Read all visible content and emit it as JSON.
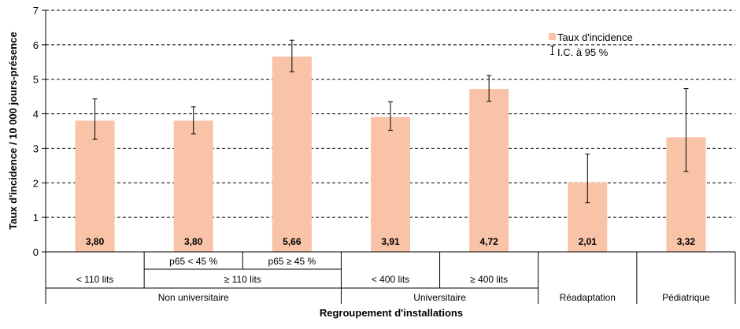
{
  "chart_data": {
    "type": "bar",
    "title": "",
    "ylabel": "Taux d'incidence / 10 000 jours-présence",
    "xlabel": "Regroupement d'installations",
    "ylim": [
      0,
      7
    ],
    "yticks": [
      "0",
      "1",
      "2",
      "3",
      "4",
      "5",
      "6",
      "7"
    ],
    "grid": "horizontal-dashed",
    "legend_position": "top-right",
    "colors": {
      "bar": "#F8C3A7",
      "error": "#000000",
      "grid": "#000000"
    },
    "series": [
      {
        "name": "Taux d'incidence",
        "values": [
          3.8,
          3.8,
          5.66,
          3.91,
          4.72,
          2.01,
          3.32
        ],
        "value_labels": [
          "3,80",
          "3,80",
          "5,66",
          "3,91",
          "4,72",
          "2,01",
          "3,32"
        ]
      }
    ],
    "error_bars": {
      "name": "I.C. à 95 %",
      "low": [
        3.26,
        3.42,
        5.22,
        3.52,
        4.36,
        1.42,
        2.33
      ],
      "high": [
        4.43,
        4.2,
        6.13,
        4.35,
        5.11,
        2.83,
        4.73
      ]
    },
    "categories": [
      "< 110 lits / Non universitaire",
      "p65 < 45 % / ≥ 110 lits / Non universitaire",
      "p65 ≥ 45 % / ≥ 110 lits / Non universitaire",
      "< 400 lits / Universitaire",
      "≥ 400 lits / Universitaire",
      "Réadaptation",
      "Pédiatrique"
    ],
    "category_levels": {
      "level1": [
        {
          "label": "",
          "start": 0,
          "end": 1
        },
        {
          "label": "p65 < 45 %",
          "start": 1,
          "end": 2
        },
        {
          "label": "p65 ≥ 45 %",
          "start": 2,
          "end": 3
        },
        {
          "label": "",
          "start": 3,
          "end": 4
        },
        {
          "label": "",
          "start": 4,
          "end": 5
        },
        {
          "label": "",
          "start": 5,
          "end": 6
        },
        {
          "label": "",
          "start": 6,
          "end": 7
        }
      ],
      "level2": [
        {
          "label": "< 110 lits",
          "start": 0,
          "end": 1
        },
        {
          "label": "≥ 110 lits",
          "start": 1,
          "end": 3
        },
        {
          "label": "< 400 lits",
          "start": 3,
          "end": 4
        },
        {
          "label": "≥ 400 lits",
          "start": 4,
          "end": 5
        },
        {
          "label": "",
          "start": 5,
          "end": 6
        },
        {
          "label": "",
          "start": 6,
          "end": 7
        }
      ],
      "level3": [
        {
          "label": "Non universitaire",
          "start": 0,
          "end": 3
        },
        {
          "label": "Universitaire",
          "start": 3,
          "end": 5
        },
        {
          "label": "Réadaptation",
          "start": 5,
          "end": 6
        },
        {
          "label": "Pédiatrique",
          "start": 6,
          "end": 7
        }
      ]
    }
  }
}
